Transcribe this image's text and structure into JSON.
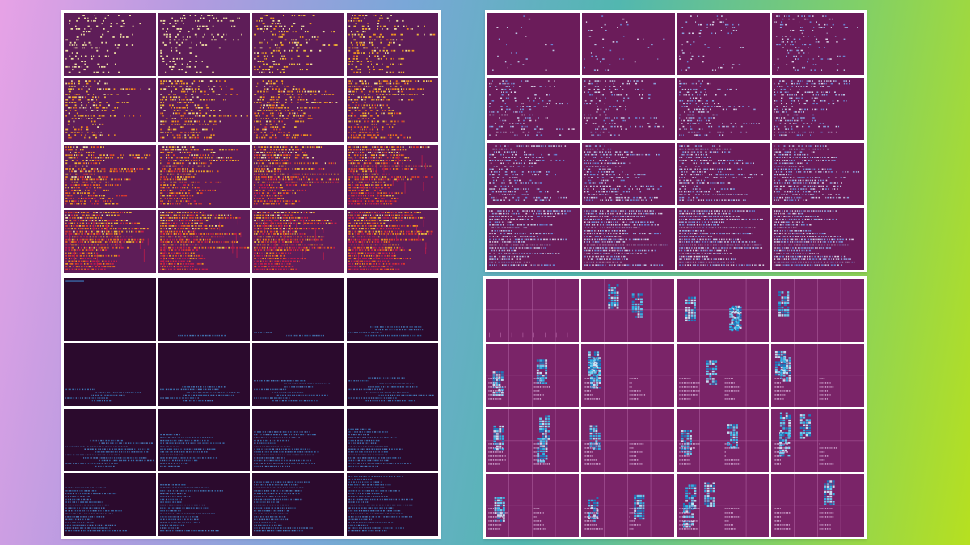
{
  "panels": [
    {
      "id": "fire",
      "rows": 4,
      "cols": 4,
      "palette": [
        "#f6e9a8",
        "#f6c23a",
        "#f59b1c",
        "#ec6a1a",
        "#e23a2a",
        "#c81e4a"
      ],
      "background": "#5e1d58"
    },
    {
      "id": "blue",
      "rows": 4,
      "cols": 4,
      "palette": [
        "#c6d8f2",
        "#8fb0ea",
        "#6a8fe0",
        "#e6e6f6"
      ],
      "background": "#6b1c5a"
    },
    {
      "id": "dark",
      "rows": 4,
      "cols": 4,
      "palette": [
        "#3d7cc0",
        "#4f8fd0",
        "#2f6aa8"
      ],
      "background": "#2b0a2d"
    },
    {
      "id": "cells",
      "rows": 4,
      "cols": 4,
      "palette": [
        "#2fb6e8",
        "#6ad0f0",
        "#1b7cc0",
        "#c7e8f8"
      ],
      "background": "#7a2468",
      "grid_line": "#b05fa0"
    }
  ]
}
